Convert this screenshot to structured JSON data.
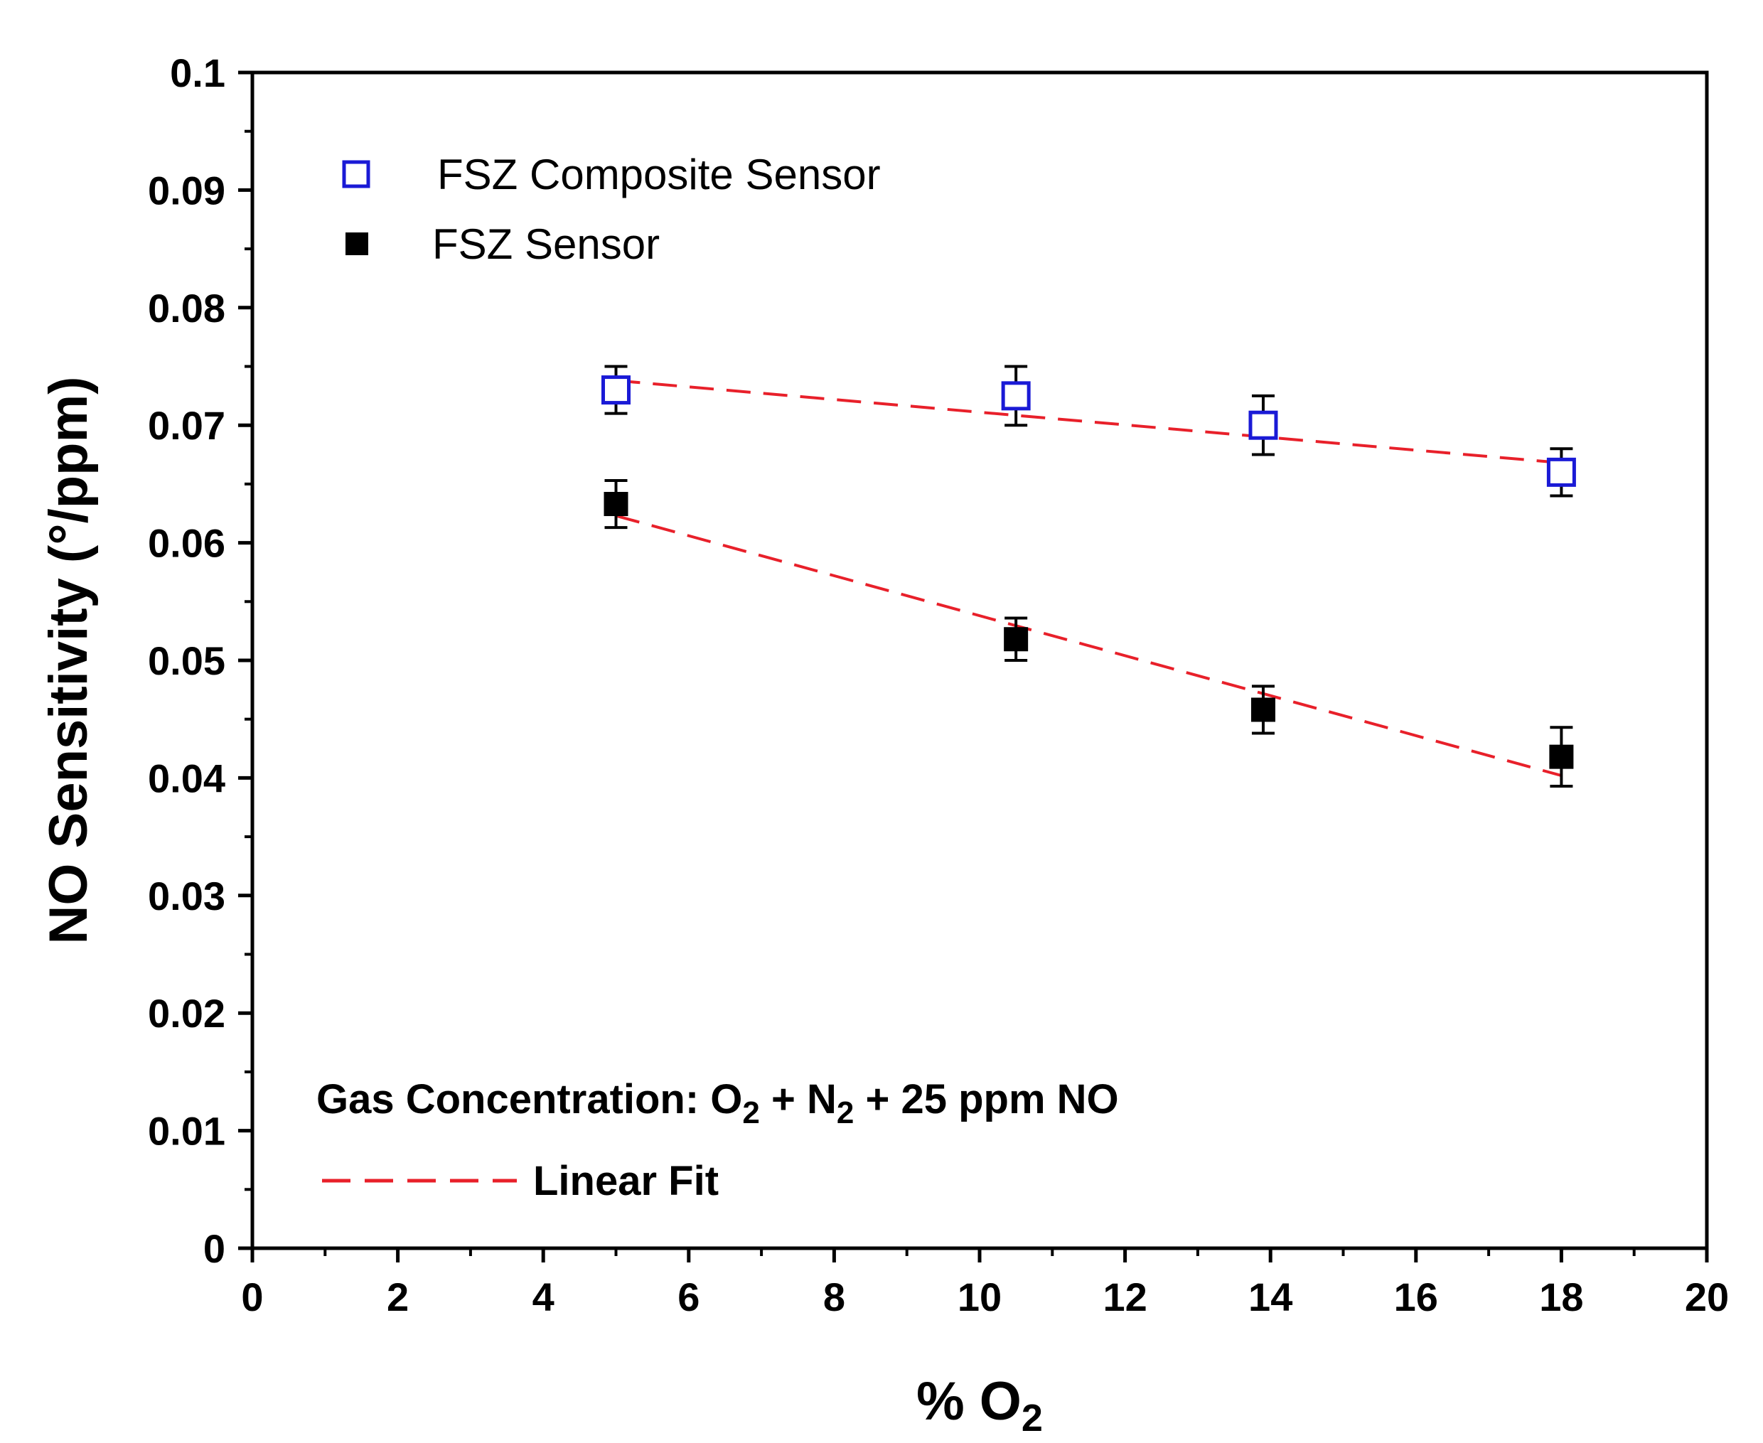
{
  "chart_data": {
    "type": "scatter",
    "title": "",
    "xlabel": "% O",
    "xlabel_subscript": "2",
    "ylabel": "NO Sensitivity (°/ppm)",
    "xlim": [
      0,
      20
    ],
    "ylim": [
      0,
      0.1
    ],
    "x_ticks": [
      "0",
      "2",
      "4",
      "6",
      "8",
      "10",
      "12",
      "14",
      "16",
      "18",
      "20"
    ],
    "y_ticks": [
      "0",
      "0.01",
      "0.02",
      "0.03",
      "0.04",
      "0.05",
      "0.06",
      "0.07",
      "0.08",
      "0.09",
      "0.1"
    ],
    "grid": false,
    "legend_position": "top-left",
    "series": [
      {
        "name": "FSZ Composite Sensor",
        "marker": "open-square",
        "color": "#1a1ad6",
        "x": [
          5,
          10.5,
          13.9,
          18
        ],
        "y": [
          0.073,
          0.0725,
          0.07,
          0.066
        ],
        "err": [
          0.002,
          0.0025,
          0.0025,
          0.002
        ],
        "fit": {
          "x": [
            5,
            18
          ],
          "y": [
            0.0738,
            0.0668
          ]
        }
      },
      {
        "name": "FSZ Sensor",
        "marker": "filled-square",
        "color": "#000000",
        "x": [
          5,
          10.5,
          13.9,
          18
        ],
        "y": [
          0.0633,
          0.0518,
          0.0458,
          0.0418
        ],
        "err": [
          0.002,
          0.0018,
          0.002,
          0.0025
        ],
        "fit": {
          "x": [
            5,
            18
          ],
          "y": [
            0.0623,
            0.0402
          ]
        }
      }
    ],
    "fit_style": {
      "label": "Linear Fit",
      "color": "#e8202a",
      "dash": "dashed"
    },
    "annotation": {
      "prefix": "Gas Concentration:  O",
      "sub1": "2",
      "mid": " + N",
      "sub2": "2",
      "suffix": " + 25 ppm NO"
    }
  }
}
